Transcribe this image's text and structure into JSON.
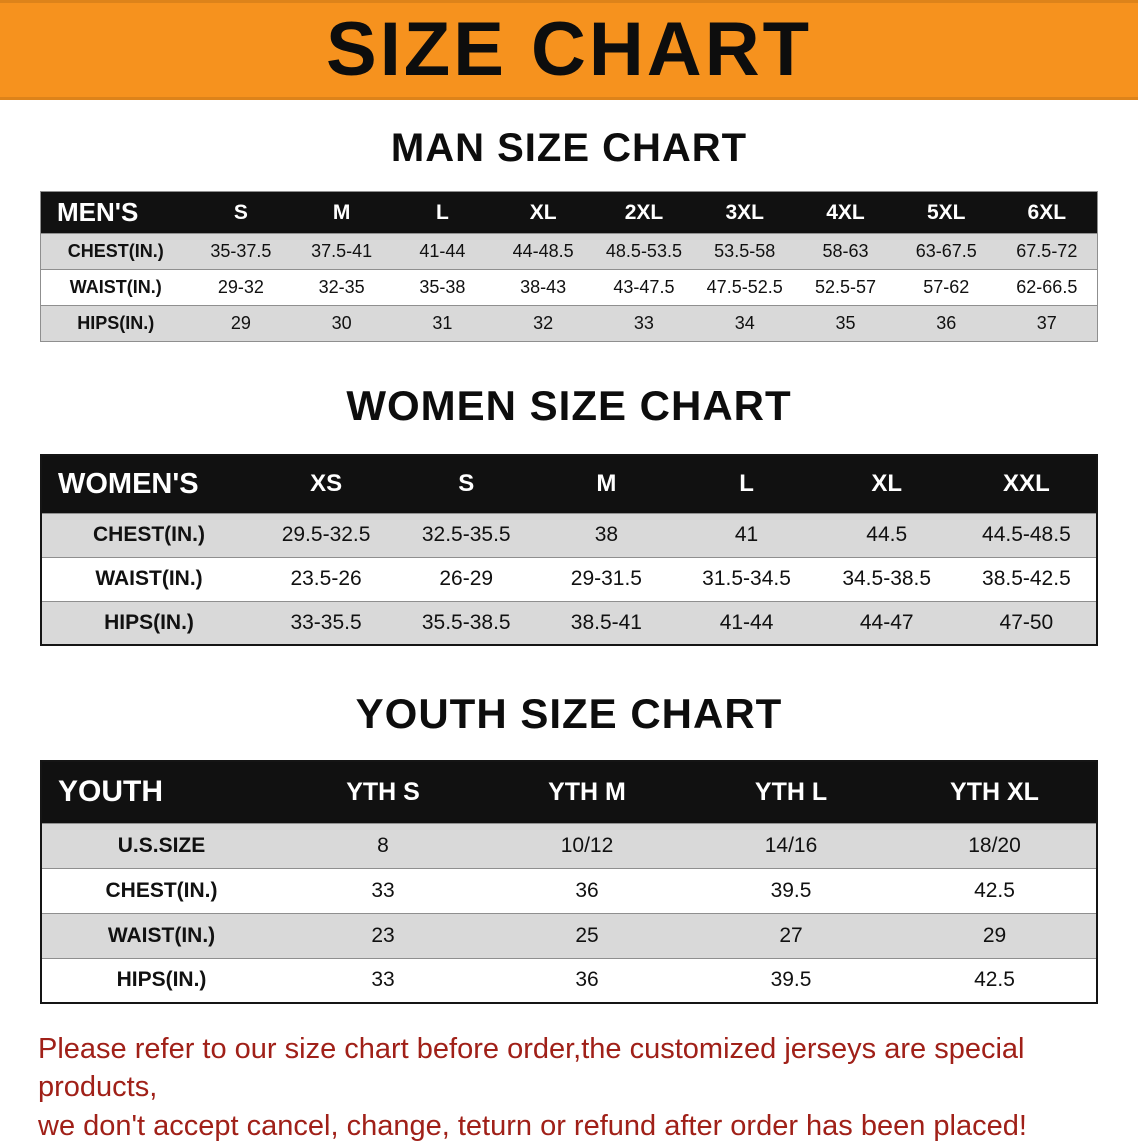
{
  "banner": {
    "title": "SIZE CHART"
  },
  "men": {
    "title": "MAN SIZE CHART",
    "header": [
      "MEN'S",
      "S",
      "M",
      "L",
      "XL",
      "2XL",
      "3XL",
      "4XL",
      "5XL",
      "6XL"
    ],
    "rows": [
      {
        "label": "CHEST(IN.)",
        "values": [
          "35-37.5",
          "37.5-41",
          "41-44",
          "44-48.5",
          "48.5-53.5",
          "53.5-58",
          "58-63",
          "63-67.5",
          "67.5-72"
        ]
      },
      {
        "label": "WAIST(IN.)",
        "values": [
          "29-32",
          "32-35",
          "35-38",
          "38-43",
          "43-47.5",
          "47.5-52.5",
          "52.5-57",
          "57-62",
          "62-66.5"
        ]
      },
      {
        "label": "HIPS(IN.)",
        "values": [
          "29",
          "30",
          "31",
          "32",
          "33",
          "34",
          "35",
          "36",
          "37"
        ]
      }
    ]
  },
  "women": {
    "title": "WOMEN SIZE CHART",
    "header": [
      "WOMEN'S",
      "XS",
      "S",
      "M",
      "L",
      "XL",
      "XXL"
    ],
    "rows": [
      {
        "label": "CHEST(IN.)",
        "values": [
          "29.5-32.5",
          "32.5-35.5",
          "38",
          "41",
          "44.5",
          "44.5-48.5"
        ]
      },
      {
        "label": "WAIST(IN.)",
        "values": [
          "23.5-26",
          "26-29",
          "29-31.5",
          "31.5-34.5",
          "34.5-38.5",
          "38.5-42.5"
        ]
      },
      {
        "label": "HIPS(IN.)",
        "values": [
          "33-35.5",
          "35.5-38.5",
          "38.5-41",
          "41-44",
          "44-47",
          "47-50"
        ]
      }
    ]
  },
  "youth": {
    "title": "YOUTH SIZE CHART",
    "header": [
      "YOUTH",
      "YTH S",
      "YTH M",
      "YTH L",
      "YTH XL"
    ],
    "rows": [
      {
        "label": "U.S.SIZE",
        "values": [
          "8",
          "10/12",
          "14/16",
          "18/20"
        ]
      },
      {
        "label": "CHEST(IN.)",
        "values": [
          "33",
          "36",
          "39.5",
          "42.5"
        ]
      },
      {
        "label": "WAIST(IN.)",
        "values": [
          "23",
          "25",
          "27",
          "29"
        ]
      },
      {
        "label": "HIPS(IN.)",
        "values": [
          "33",
          "36",
          "39.5",
          "42.5"
        ]
      }
    ]
  },
  "footer": {
    "line1": "Please refer to our size chart before order,the customized jerseys are special products,",
    "line2": "we don't accept cancel, change, teturn or refund after order has been placed!"
  },
  "colors": {
    "banner_orange": "#F6921E",
    "header_black": "#111111",
    "row_gray": "#D9D9D9",
    "footer_red": "#A02018"
  }
}
